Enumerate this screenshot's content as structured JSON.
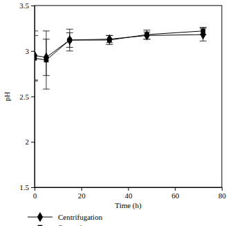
{
  "chart_data": {
    "type": "line",
    "x_label": "Time (h)",
    "y_label": "pH",
    "x": [
      0,
      5,
      15,
      32,
      48,
      72
    ],
    "series": [
      {
        "name": "Centrifugation",
        "color": "#000000",
        "marker": "diamond",
        "line_style": "solid",
        "values": [
          2.95,
          2.93,
          3.12,
          3.13,
          3.17,
          3.18
        ],
        "errors": [
          0.27,
          0.2,
          0.08,
          0.04,
          0.04,
          0.07
        ]
      },
      {
        "name": "Squeezing",
        "color": "#000000",
        "marker": "square",
        "line_style": "solid",
        "values": [
          2.92,
          2.9,
          3.12,
          3.12,
          3.18,
          3.22
        ],
        "errors": [
          0.25,
          0.32,
          0.12,
          0.05,
          0.05,
          0.04
        ]
      }
    ],
    "xlim": [
      0,
      80
    ],
    "xticks": [
      0,
      20,
      40,
      60,
      80
    ],
    "ylim": [
      1.5,
      3.5
    ],
    "yticks": [
      1.5,
      2,
      2.5,
      3,
      3.5
    ],
    "grid": false,
    "legend": "bottom"
  }
}
